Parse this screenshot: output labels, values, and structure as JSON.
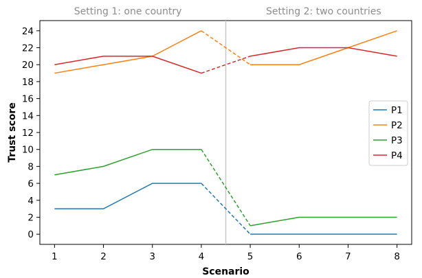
{
  "chart_data": {
    "type": "line",
    "title": "",
    "xlabel": "Scenario",
    "ylabel": "Trust score",
    "x": [
      1,
      2,
      3,
      4,
      5,
      6,
      7,
      8
    ],
    "xlim": [
      0.7,
      8.3
    ],
    "ylim": [
      -1.2,
      25.2
    ],
    "yticks": [
      0,
      2,
      4,
      6,
      8,
      10,
      12,
      14,
      16,
      18,
      20,
      22,
      24
    ],
    "xticks": [
      1,
      2,
      3,
      4,
      5,
      6,
      7,
      8
    ],
    "divider_x": 4.5,
    "divider_color": "#c8c8c8",
    "dashed_segment": [
      4,
      5
    ],
    "settings": [
      {
        "label": "Setting 1: one country",
        "center_x": 2.5
      },
      {
        "label": "Setting 2: two countries",
        "center_x": 6.5
      }
    ],
    "legend_position": "center-right",
    "series": [
      {
        "name": "P1",
        "color": "#1f77b4",
        "values": [
          3,
          3,
          6,
          6,
          0,
          0,
          0,
          0
        ]
      },
      {
        "name": "P2",
        "color": "#ff7f0e",
        "values": [
          19,
          20,
          21,
          24,
          20,
          20,
          22,
          24
        ]
      },
      {
        "name": "P3",
        "color": "#2ca02c",
        "values": [
          7,
          8,
          10,
          10,
          1,
          2,
          2,
          2
        ]
      },
      {
        "name": "P4",
        "color": "#d62728",
        "values": [
          20,
          21,
          21,
          19,
          21,
          22,
          22,
          21
        ]
      }
    ]
  }
}
